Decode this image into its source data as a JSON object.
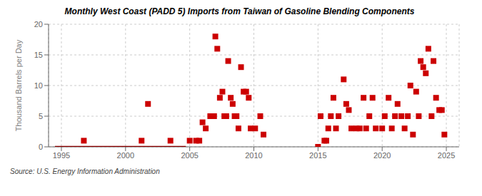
{
  "chart_data": {
    "type": "scatter",
    "title": "Monthly West Coast (PADD 5) Imports from Taiwan of Gasoline Blending Components",
    "ylabel": "Thousand Barrels per Day",
    "source": "Source: U.S. Energy Information Administration",
    "xlim": [
      1994,
      2026
    ],
    "ylim": [
      0,
      20
    ],
    "xticks": [
      1995,
      2000,
      2005,
      2010,
      2015,
      2020,
      2025
    ],
    "yticks": [
      0,
      5,
      10,
      15,
      20
    ],
    "grid": true,
    "series": [
      {
        "type": "scatter",
        "color": "#cc0000",
        "marker": "square",
        "x": [
          1996.75,
          2001.25,
          2001.75,
          2003.5,
          2005.0,
          2005.5,
          2005.75,
          2006.0,
          2006.25,
          2006.6,
          2006.9,
          2007.0,
          2007.15,
          2007.35,
          2007.55,
          2007.7,
          2007.85,
          2008.0,
          2008.2,
          2008.35,
          2008.5,
          2008.65,
          2008.8,
          2009.0,
          2009.2,
          2009.4,
          2009.6,
          2009.75,
          2010.1,
          2010.5,
          2010.75,
          2015.0,
          2015.2,
          2015.5,
          2015.65,
          2015.8,
          2016.0,
          2016.2,
          2016.4,
          2016.6,
          2017.0,
          2017.2,
          2017.4,
          2017.6,
          2018.0,
          2018.25,
          2018.55,
          2018.75,
          2019.0,
          2019.25,
          2019.5,
          2020.0,
          2020.2,
          2020.5,
          2020.75,
          2021.0,
          2021.2,
          2021.5,
          2021.75,
          2022.0,
          2022.2,
          2022.4,
          2022.65,
          2022.85,
          2023.0,
          2023.2,
          2023.4,
          2023.6,
          2023.85,
          2024.0,
          2024.2,
          2024.45,
          2024.65,
          2024.85
        ],
        "values": [
          1.0,
          1.0,
          7.0,
          1.0,
          1.0,
          1.0,
          1.0,
          4.0,
          3.0,
          5.0,
          5.0,
          18.0,
          16.0,
          8.0,
          9.0,
          5.0,
          5.0,
          14.0,
          8.0,
          7.0,
          5.0,
          5.0,
          3.0,
          13.0,
          9.0,
          9.0,
          8.0,
          3.0,
          3.0,
          5.0,
          2.0,
          0.0,
          5.0,
          1.0,
          1.0,
          3.0,
          5.0,
          8.0,
          3.0,
          5.0,
          11.0,
          7.0,
          6.0,
          3.0,
          3.0,
          3.0,
          8.0,
          3.0,
          5.0,
          8.0,
          3.0,
          3.0,
          5.0,
          8.0,
          3.0,
          5.0,
          7.0,
          5.0,
          3.0,
          5.0,
          10.0,
          2.0,
          9.0,
          5.0,
          14.0,
          13.0,
          12.0,
          16.0,
          5.0,
          14.0,
          8.0,
          6.0,
          6.0,
          2.0
        ]
      },
      {
        "type": "line",
        "color": "#8b0000",
        "x": [
          1994.5,
          2004.7
        ],
        "values": [
          0,
          0
        ]
      }
    ]
  }
}
